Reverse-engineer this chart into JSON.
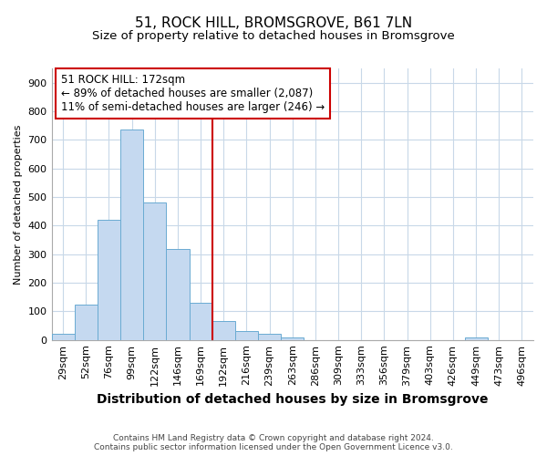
{
  "title": "51, ROCK HILL, BROMSGROVE, B61 7LN",
  "subtitle": "Size of property relative to detached houses in Bromsgrove",
  "xlabel": "Distribution of detached houses by size in Bromsgrove",
  "ylabel": "Number of detached properties",
  "categories": [
    "29sqm",
    "52sqm",
    "76sqm",
    "99sqm",
    "122sqm",
    "146sqm",
    "169sqm",
    "192sqm",
    "216sqm",
    "239sqm",
    "263sqm",
    "286sqm",
    "309sqm",
    "333sqm",
    "356sqm",
    "379sqm",
    "403sqm",
    "426sqm",
    "449sqm",
    "473sqm",
    "496sqm"
  ],
  "values": [
    22,
    122,
    420,
    735,
    480,
    318,
    130,
    65,
    30,
    22,
    10,
    0,
    0,
    0,
    0,
    0,
    0,
    0,
    8,
    0,
    0
  ],
  "bar_color": "#c5d9f0",
  "bar_edge_color": "#6aabd2",
  "marker_index": 6,
  "marker_color": "#cc0000",
  "ylim": [
    0,
    950
  ],
  "yticks": [
    0,
    100,
    200,
    300,
    400,
    500,
    600,
    700,
    800,
    900
  ],
  "annotation_text": "51 ROCK HILL: 172sqm\n← 89% of detached houses are smaller (2,087)\n11% of semi-detached houses are larger (246) →",
  "annotation_box_color": "#ffffff",
  "annotation_box_edge": "#cc0000",
  "footer1": "Contains HM Land Registry data © Crown copyright and database right 2024.",
  "footer2": "Contains public sector information licensed under the Open Government Licence v3.0.",
  "bg_color": "#ffffff",
  "grid_color": "#c8d8e8",
  "title_fontsize": 11,
  "subtitle_fontsize": 9.5,
  "xlabel_fontsize": 10,
  "ylabel_fontsize": 8,
  "tick_fontsize": 8
}
